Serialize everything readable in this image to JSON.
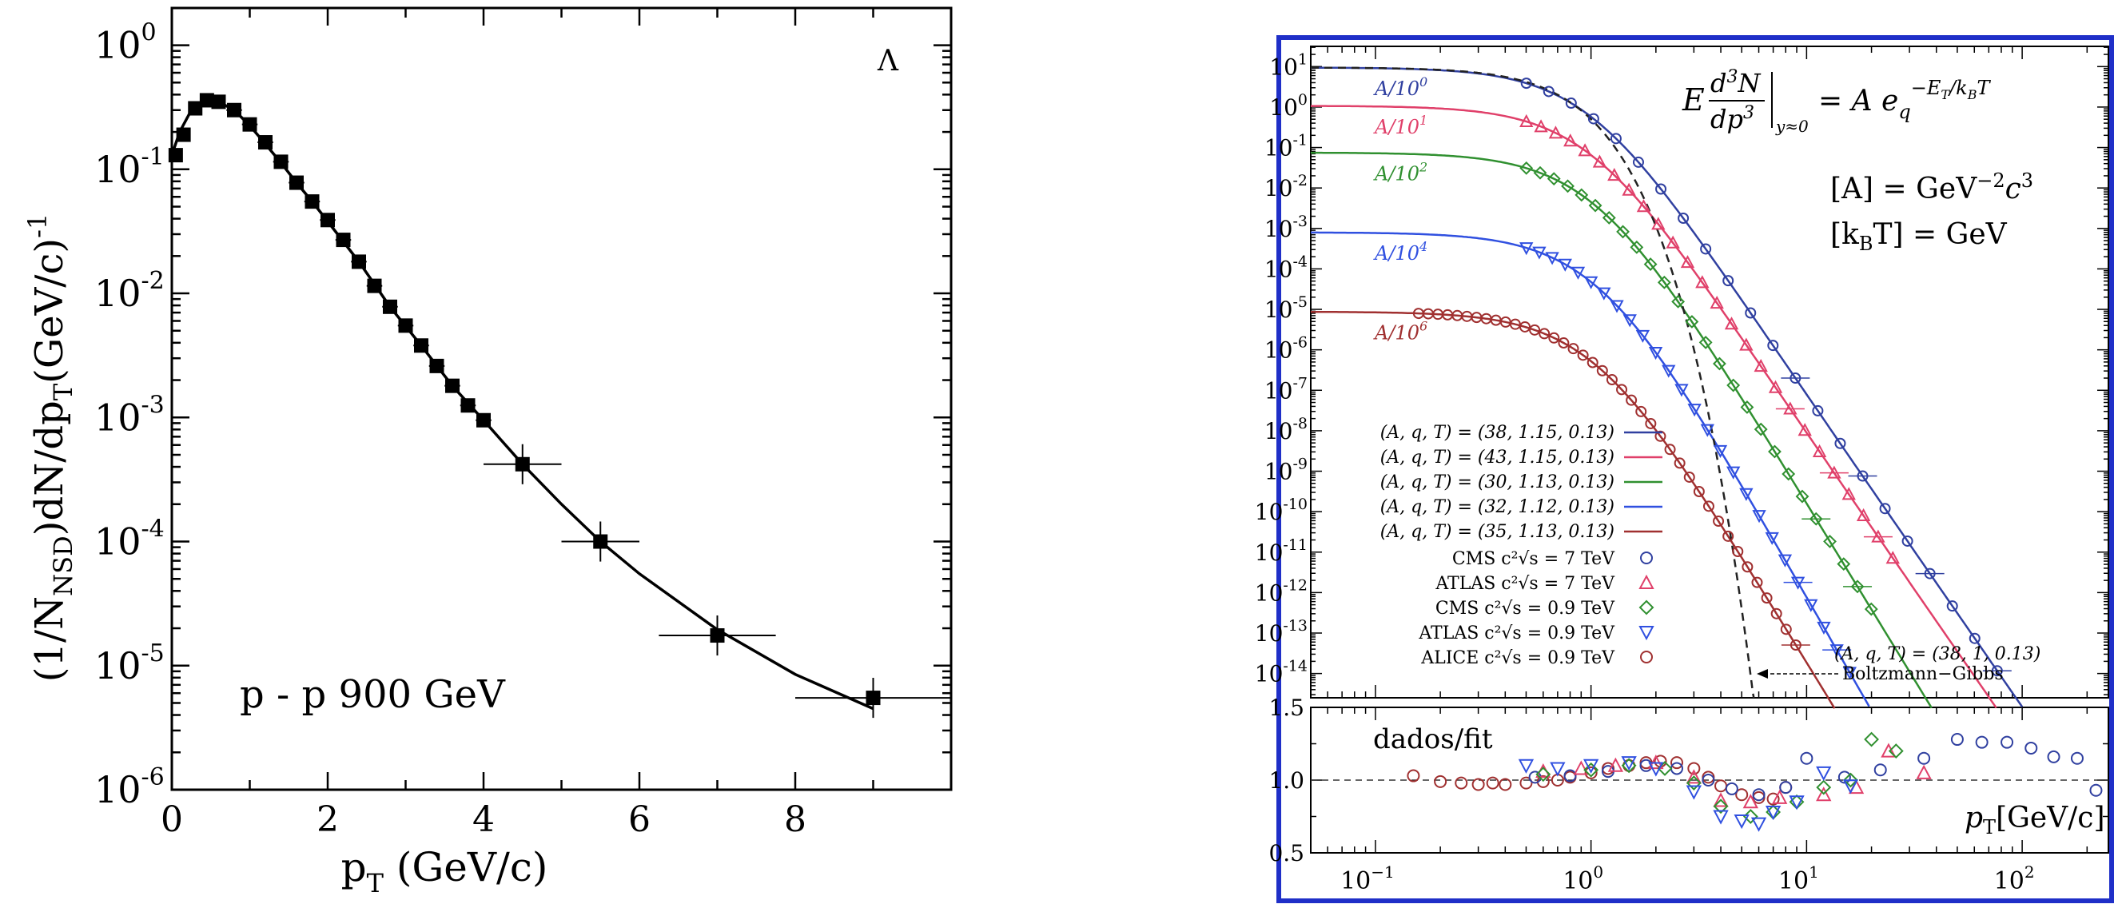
{
  "chart_data": [
    {
      "type": "scatter",
      "title": "",
      "particle_label": "Λ",
      "annotation": "p - p 900 GeV",
      "xlabel_main": "p",
      "xlabel_sub": "T",
      "xlabel_rest": " (GeV/c)",
      "ylabel_parts": [
        "(1/N",
        "NSD",
        ")dN/dp",
        "T",
        "(GeV/c)",
        "-1"
      ],
      "xlim": [
        0,
        10
      ],
      "ylim_log10": [
        -6,
        0.3
      ],
      "xticks": [
        0,
        2,
        4,
        6,
        8
      ],
      "xtick_labels": [
        "0",
        "2",
        "4",
        "6",
        "8"
      ],
      "yticks": [
        {
          "base": "10",
          "exp": "0",
          "value": 0
        },
        {
          "base": "10",
          "exp": "-1",
          "value": -1
        },
        {
          "base": "10",
          "exp": "-2",
          "value": -2
        },
        {
          "base": "10",
          "exp": "-3",
          "value": -3
        },
        {
          "base": "10",
          "exp": "-4",
          "value": -4
        },
        {
          "base": "10",
          "exp": "-5",
          "value": -5
        },
        {
          "base": "10",
          "exp": "-6",
          "value": -6
        }
      ],
      "points": [
        {
          "x": 0.05,
          "y": 0.13,
          "xerr": 0.05
        },
        {
          "x": 0.15,
          "y": 0.19,
          "xerr": 0.05
        },
        {
          "x": 0.3,
          "y": 0.31,
          "xerr": 0.05
        },
        {
          "x": 0.45,
          "y": 0.36,
          "xerr": 0.05
        },
        {
          "x": 0.6,
          "y": 0.35,
          "xerr": 0.05
        },
        {
          "x": 0.8,
          "y": 0.3,
          "xerr": 0.1
        },
        {
          "x": 1.0,
          "y": 0.23,
          "xerr": 0.1
        },
        {
          "x": 1.2,
          "y": 0.165,
          "xerr": 0.1
        },
        {
          "x": 1.4,
          "y": 0.115,
          "xerr": 0.1
        },
        {
          "x": 1.6,
          "y": 0.078,
          "xerr": 0.1
        },
        {
          "x": 1.8,
          "y": 0.055,
          "xerr": 0.1
        },
        {
          "x": 2.0,
          "y": 0.039,
          "xerr": 0.1
        },
        {
          "x": 2.2,
          "y": 0.027,
          "xerr": 0.1
        },
        {
          "x": 2.4,
          "y": 0.018,
          "xerr": 0.1
        },
        {
          "x": 2.6,
          "y": 0.0115,
          "xerr": 0.1
        },
        {
          "x": 2.8,
          "y": 0.0078,
          "xerr": 0.1
        },
        {
          "x": 3.0,
          "y": 0.0055,
          "xerr": 0.1
        },
        {
          "x": 3.2,
          "y": 0.0038,
          "xerr": 0.1
        },
        {
          "x": 3.4,
          "y": 0.0026,
          "xerr": 0.1
        },
        {
          "x": 3.6,
          "y": 0.0018,
          "xerr": 0.1
        },
        {
          "x": 3.8,
          "y": 0.00125,
          "xerr": 0.1
        },
        {
          "x": 4.0,
          "y": 0.00095,
          "xerr": 0.1
        },
        {
          "x": 4.5,
          "y": 0.00042,
          "xerr": 0.5
        },
        {
          "x": 5.5,
          "y": 0.0001,
          "xerr": 0.5
        },
        {
          "x": 7.0,
          "y": 1.75e-05,
          "xerr": 0.75
        },
        {
          "x": 9.0,
          "y": 5.5e-06,
          "xerr": 1.0
        }
      ],
      "fit_curve": [
        [
          0.0,
          0.13
        ],
        [
          0.1,
          0.2
        ],
        [
          0.25,
          0.3
        ],
        [
          0.45,
          0.36
        ],
        [
          0.6,
          0.35
        ],
        [
          0.8,
          0.3
        ],
        [
          1.0,
          0.225
        ],
        [
          1.2,
          0.16
        ],
        [
          1.4,
          0.113
        ],
        [
          1.6,
          0.078
        ],
        [
          1.8,
          0.055
        ],
        [
          2.0,
          0.038
        ],
        [
          2.4,
          0.018
        ],
        [
          2.8,
          0.0078
        ],
        [
          3.2,
          0.0038
        ],
        [
          3.6,
          0.0018
        ],
        [
          4.0,
          0.00095
        ],
        [
          4.5,
          0.00042
        ],
        [
          5.0,
          0.0002
        ],
        [
          5.5,
          0.0001
        ],
        [
          6.0,
          5.5e-05
        ],
        [
          7.0,
          1.95e-05
        ],
        [
          8.0,
          8.5e-06
        ],
        [
          9.0,
          4.5e-06
        ]
      ]
    },
    {
      "type": "line",
      "title": "",
      "equation": {
        "E": "E",
        "dN_num": "d",
        "dN_num_sup": "3",
        "dN_num_var": "N",
        "dN_den": "d",
        "dN_den_var": "p",
        "dN_den_sup": "3",
        "sub": "y≈0",
        "equals": "= A e",
        "e_sub": "q",
        "e_sup": "−E",
        "e_sup_sub": "T",
        "e_sup_rest": "/k",
        "e_sup_sub2": "B",
        "e_sup_end": "T"
      },
      "units": [
        {
          "lhs": "[A] = GeV",
          "sup": "−2",
          "mid": "c",
          "sup2": "3"
        },
        {
          "lhs": "[k",
          "sub": "B",
          "rhs": "T] = GeV"
        }
      ],
      "xlim_log10": [
        -1.3,
        2.4
      ],
      "ylim_log10": [
        -14.6,
        1.5
      ],
      "xtick_labels": [
        {
          "base": "10",
          "exp": "−1",
          "value": -1
        },
        {
          "base": "10",
          "exp": "0",
          "value": 0
        },
        {
          "base": "10",
          "exp": "1",
          "value": 1
        },
        {
          "base": "10",
          "exp": "2",
          "value": 2
        }
      ],
      "ytick_labels": [
        {
          "base": "10",
          "exp": "1",
          "value": 1
        },
        {
          "base": "10",
          "exp": "0",
          "value": 0
        },
        {
          "base": "10",
          "exp": "-1",
          "value": -1
        },
        {
          "base": "10",
          "exp": "-2",
          "value": -2
        },
        {
          "base": "10",
          "exp": "-3",
          "value": -3
        },
        {
          "base": "10",
          "exp": "-4",
          "value": -4
        },
        {
          "base": "10",
          "exp": "-5",
          "value": -5
        },
        {
          "base": "10",
          "exp": "-6",
          "value": -6
        },
        {
          "base": "10",
          "exp": "-7",
          "value": -7
        },
        {
          "base": "10",
          "exp": "-8",
          "value": -8
        },
        {
          "base": "10",
          "exp": "-9",
          "value": -9
        },
        {
          "base": "10",
          "exp": "-10",
          "value": -10
        },
        {
          "base": "10",
          "exp": "-11",
          "value": -11
        },
        {
          "base": "10",
          "exp": "-12",
          "value": -12
        },
        {
          "base": "10",
          "exp": "-13",
          "value": -13
        },
        {
          "base": "10",
          "exp": "-14",
          "value": -14
        }
      ],
      "series": [
        {
          "name": "CMS c²√s = 7 TeV",
          "fit_label": "(A, q, T) = (38, 1.15, 0.13)",
          "scale_label": "A/10",
          "scale_exp": "0",
          "color": "#3040a0",
          "marker": "circle",
          "A": 38,
          "q": 1.15,
          "T": 0.13,
          "shift": 0,
          "x_range_log10": [
            -0.3,
            2.3
          ]
        },
        {
          "name": "ATLAS c²√s = 7 TeV",
          "fit_label": "(A, q, T) = (43, 1.15, 0.13)",
          "scale_label": "A/10",
          "scale_exp": "1",
          "color": "#e0406a",
          "marker": "triangle-up",
          "A": 43,
          "q": 1.15,
          "T": 0.13,
          "shift": -1,
          "x_range_log10": [
            -0.3,
            1.4
          ]
        },
        {
          "name": "CMS c²√s = 0.9 TeV",
          "fit_label": "(A, q, T) = (30, 1.13, 0.13)",
          "scale_label": "A/10",
          "scale_exp": "2",
          "color": "#309030",
          "marker": "diamond",
          "A": 30,
          "q": 1.13,
          "T": 0.13,
          "shift": -2,
          "x_range_log10": [
            -0.3,
            1.3
          ]
        },
        {
          "name": "ATLAS c²√s = 0.9 TeV",
          "fit_label": "(A, q, T) = (32, 1.12, 0.13)",
          "scale_label": "A/10",
          "scale_exp": "4",
          "color": "#3050e0",
          "marker": "triangle-down",
          "A": 32,
          "q": 1.12,
          "T": 0.13,
          "shift": -4,
          "x_range_log10": [
            -0.3,
            1.2
          ]
        },
        {
          "name": "ALICE c²√s = 0.9 TeV",
          "fit_label": "(A, q, T) = (35, 1.13, 0.13)",
          "scale_label": "A/10",
          "scale_exp": "6",
          "color": "#a03030",
          "marker": "circle",
          "A": 35,
          "q": 1.13,
          "T": 0.13,
          "shift": -6,
          "x_range_log10": [
            -0.8,
            0.95
          ]
        }
      ],
      "boltzmann": {
        "label": "(A, q, T) = (38, 1, 0.13)",
        "name": "Boltzmann−Gibbs",
        "A": 38,
        "T": 0.13
      },
      "ratio_panel": {
        "ylabel_text": "dados/fit",
        "xlabel_main": "p",
        "xlabel_sub": "T",
        "xlabel_rest": "[GeV/c]",
        "ylim": [
          0.5,
          1.5
        ],
        "ytick_labels": [
          "1.5",
          "1.0",
          "0.5"
        ],
        "ytick_values": [
          1.5,
          1.0,
          0.5
        ],
        "reference": 1.0,
        "points": [
          {
            "s": 4,
            "x": 0.15,
            "y": 1.03
          },
          {
            "s": 4,
            "x": 0.2,
            "y": 0.99
          },
          {
            "s": 4,
            "x": 0.25,
            "y": 0.98
          },
          {
            "s": 4,
            "x": 0.3,
            "y": 0.97
          },
          {
            "s": 4,
            "x": 0.35,
            "y": 0.98
          },
          {
            "s": 4,
            "x": 0.4,
            "y": 0.97
          },
          {
            "s": 4,
            "x": 0.5,
            "y": 0.98
          },
          {
            "s": 4,
            "x": 0.6,
            "y": 0.99
          },
          {
            "s": 4,
            "x": 0.7,
            "y": 1.0
          },
          {
            "s": 4,
            "x": 0.8,
            "y": 1.02
          },
          {
            "s": 4,
            "x": 1.0,
            "y": 1.05
          },
          {
            "s": 4,
            "x": 1.2,
            "y": 1.08
          },
          {
            "s": 4,
            "x": 1.5,
            "y": 1.1
          },
          {
            "s": 4,
            "x": 1.8,
            "y": 1.12
          },
          {
            "s": 4,
            "x": 2.1,
            "y": 1.13
          },
          {
            "s": 4,
            "x": 2.5,
            "y": 1.12
          },
          {
            "s": 4,
            "x": 3.0,
            "y": 1.08
          },
          {
            "s": 4,
            "x": 3.5,
            "y": 1.02
          },
          {
            "s": 4,
            "x": 4.0,
            "y": 0.96
          },
          {
            "s": 4,
            "x": 5.0,
            "y": 0.9
          },
          {
            "s": 4,
            "x": 6.0,
            "y": 0.88
          },
          {
            "s": 4,
            "x": 7.0,
            "y": 0.87
          },
          {
            "s": 4,
            "x": 8.0,
            "y": 0.95
          },
          {
            "s": 0,
            "x": 0.55,
            "y": 1.02
          },
          {
            "s": 0,
            "x": 0.8,
            "y": 1.03
          },
          {
            "s": 0,
            "x": 1.2,
            "y": 1.06
          },
          {
            "s": 0,
            "x": 1.8,
            "y": 1.1
          },
          {
            "s": 0,
            "x": 2.5,
            "y": 1.08
          },
          {
            "s": 0,
            "x": 3.5,
            "y": 1.0
          },
          {
            "s": 0,
            "x": 4.5,
            "y": 0.94
          },
          {
            "s": 0,
            "x": 6.0,
            "y": 0.9
          },
          {
            "s": 0,
            "x": 8.0,
            "y": 0.95
          },
          {
            "s": 0,
            "x": 10.0,
            "y": 1.15
          },
          {
            "s": 0,
            "x": 15.0,
            "y": 1.02
          },
          {
            "s": 0,
            "x": 22.0,
            "y": 1.07
          },
          {
            "s": 0,
            "x": 35.0,
            "y": 1.15
          },
          {
            "s": 0,
            "x": 50.0,
            "y": 1.28
          },
          {
            "s": 0,
            "x": 65.0,
            "y": 1.26
          },
          {
            "s": 0,
            "x": 85.0,
            "y": 1.26
          },
          {
            "s": 0,
            "x": 110.0,
            "y": 1.22
          },
          {
            "s": 0,
            "x": 140.0,
            "y": 1.16
          },
          {
            "s": 0,
            "x": 180.0,
            "y": 1.15
          },
          {
            "s": 0,
            "x": 220.0,
            "y": 0.93
          },
          {
            "s": 1,
            "x": 0.6,
            "y": 1.06
          },
          {
            "s": 1,
            "x": 0.9,
            "y": 1.08
          },
          {
            "s": 1,
            "x": 1.3,
            "y": 1.1
          },
          {
            "s": 1,
            "x": 2.0,
            "y": 1.12
          },
          {
            "s": 1,
            "x": 3.0,
            "y": 1.02
          },
          {
            "s": 1,
            "x": 4.0,
            "y": 0.86
          },
          {
            "s": 1,
            "x": 5.5,
            "y": 0.85
          },
          {
            "s": 1,
            "x": 7.5,
            "y": 0.88
          },
          {
            "s": 1,
            "x": 12.0,
            "y": 0.9
          },
          {
            "s": 1,
            "x": 17.0,
            "y": 0.95
          },
          {
            "s": 1,
            "x": 24.0,
            "y": 1.2
          },
          {
            "s": 1,
            "x": 35.0,
            "y": 1.05
          },
          {
            "s": 2,
            "x": 0.6,
            "y": 1.04
          },
          {
            "s": 2,
            "x": 1.0,
            "y": 1.07
          },
          {
            "s": 2,
            "x": 1.5,
            "y": 1.1
          },
          {
            "s": 2,
            "x": 2.2,
            "y": 1.08
          },
          {
            "s": 2,
            "x": 3.0,
            "y": 0.98
          },
          {
            "s": 2,
            "x": 4.0,
            "y": 0.82
          },
          {
            "s": 2,
            "x": 5.5,
            "y": 0.75
          },
          {
            "s": 2,
            "x": 7.0,
            "y": 0.78
          },
          {
            "s": 2,
            "x": 9.0,
            "y": 0.85
          },
          {
            "s": 2,
            "x": 12.0,
            "y": 0.95
          },
          {
            "s": 2,
            "x": 16.0,
            "y": 1.0
          },
          {
            "s": 2,
            "x": 20.0,
            "y": 1.28
          },
          {
            "s": 2,
            "x": 26.0,
            "y": 1.2
          },
          {
            "s": 3,
            "x": 0.5,
            "y": 1.1
          },
          {
            "s": 3,
            "x": 0.7,
            "y": 1.08
          },
          {
            "s": 3,
            "x": 1.0,
            "y": 1.1
          },
          {
            "s": 3,
            "x": 1.5,
            "y": 1.12
          },
          {
            "s": 3,
            "x": 2.0,
            "y": 1.08
          },
          {
            "s": 3,
            "x": 3.0,
            "y": 0.92
          },
          {
            "s": 3,
            "x": 4.0,
            "y": 0.75
          },
          {
            "s": 3,
            "x": 5.0,
            "y": 0.72
          },
          {
            "s": 3,
            "x": 6.0,
            "y": 0.7
          },
          {
            "s": 3,
            "x": 7.0,
            "y": 0.78
          },
          {
            "s": 3,
            "x": 9.0,
            "y": 0.85
          },
          {
            "s": 3,
            "x": 12.0,
            "y": 1.05
          },
          {
            "s": 3,
            "x": 16.0,
            "y": 0.96
          }
        ]
      }
    }
  ]
}
